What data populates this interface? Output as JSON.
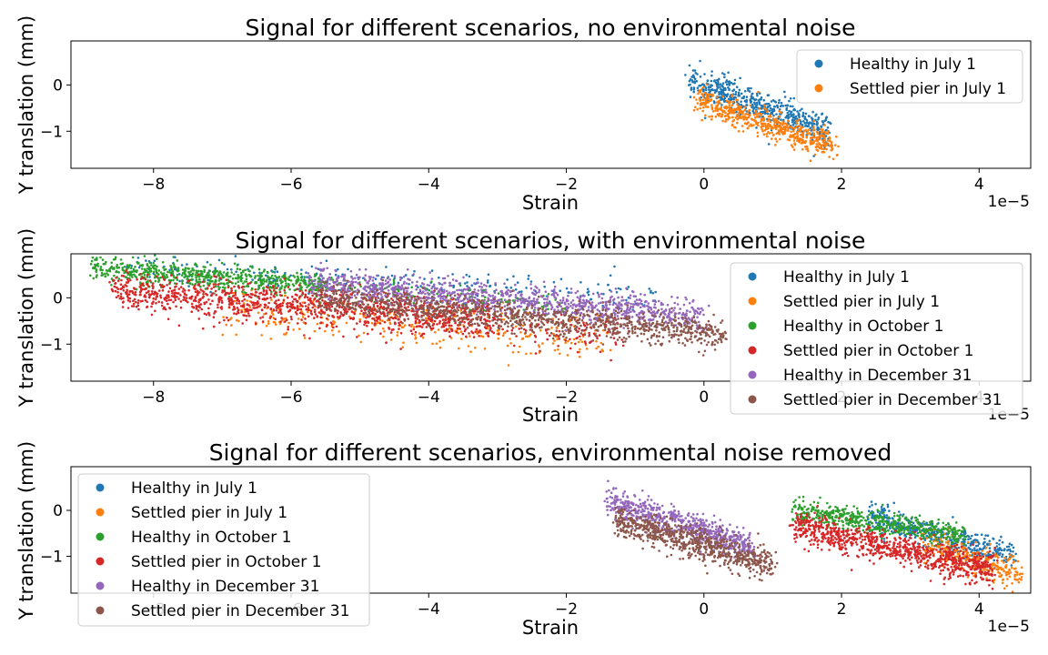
{
  "chart_data": [
    {
      "type": "scatter",
      "title": "Signal for different scenarios, no environmental noise",
      "xlabel": "Strain",
      "ylabel": "Y translation (mm)",
      "x_offset_label": "1e−5",
      "xlim": [
        -9.2,
        4.75
      ],
      "ylim": [
        -1.8,
        0.95
      ],
      "xticks": [
        -8,
        -6,
        -4,
        -2,
        0,
        2,
        4
      ],
      "yticks": [
        0,
        -1
      ],
      "legend": "upper-right",
      "series": [
        {
          "name": "Healthy in July 1",
          "color": "#1f77b4",
          "clusters": [
            {
              "x": [
                -0.2,
                1.8
              ],
              "y_center": [
                0.1,
                -1.0
              ],
              "spread": 0.17,
              "n": 550
            }
          ]
        },
        {
          "name": "Settled pier in July 1",
          "color": "#ff7f0e",
          "clusters": [
            {
              "x": [
                -0.1,
                1.9
              ],
              "y_center": [
                -0.3,
                -1.35
              ],
              "spread": 0.15,
              "n": 550
            }
          ]
        }
      ]
    },
    {
      "type": "scatter",
      "title": "Signal for different scenarios, with environmental noise",
      "xlabel": "Strain",
      "ylabel": "Y translation (mm)",
      "x_offset_label": "1e−5",
      "xlim": [
        -9.2,
        4.75
      ],
      "ylim": [
        -1.8,
        0.95
      ],
      "xticks": [
        -8,
        -6,
        -4,
        -2,
        0,
        2,
        4
      ],
      "yticks": [
        0,
        -1
      ],
      "legend": "right",
      "series": [
        {
          "name": "Healthy in July 1",
          "color": "#1f77b4",
          "clusters": [
            {
              "x": [
                -8.5,
                -0.6
              ],
              "y_center": [
                0.65,
                0.05
              ],
              "spread": 0.15,
              "n": 250
            }
          ]
        },
        {
          "name": "Settled pier in July 1",
          "color": "#ff7f0e",
          "clusters": [
            {
              "x": [
                -7.0,
                -1.4
              ],
              "y_center": [
                -0.3,
                -0.85
              ],
              "spread": 0.25,
              "n": 350
            }
          ]
        },
        {
          "name": "Healthy in October 1",
          "color": "#2ca02c",
          "clusters": [
            {
              "x": [
                -8.9,
                -5.5
              ],
              "y_center": [
                0.65,
                0.25
              ],
              "spread": 0.13,
              "n": 650
            },
            {
              "x": [
                -5.5,
                -2.0
              ],
              "y_center": [
                0.3,
                -0.2
              ],
              "spread": 0.13,
              "n": 120
            }
          ]
        },
        {
          "name": "Settled pier in October 1",
          "color": "#d62728",
          "clusters": [
            {
              "x": [
                -8.6,
                -3.0
              ],
              "y_center": [
                0.15,
                -0.45
              ],
              "spread": 0.2,
              "n": 1100
            },
            {
              "x": [
                -5.0,
                -1.2
              ],
              "y_center": [
                -0.4,
                -0.8
              ],
              "spread": 0.2,
              "n": 200
            }
          ]
        },
        {
          "name": "Healthy in December 31",
          "color": "#9467bd",
          "clusters": [
            {
              "x": [
                -5.7,
                0.0
              ],
              "y_center": [
                0.35,
                -0.4
              ],
              "spread": 0.16,
              "n": 1100
            }
          ]
        },
        {
          "name": "Settled pier in December 31",
          "color": "#8c564b",
          "clusters": [
            {
              "x": [
                -5.6,
                0.3
              ],
              "y_center": [
                0.0,
                -0.8
              ],
              "spread": 0.16,
              "n": 1100
            }
          ]
        }
      ]
    },
    {
      "type": "scatter",
      "title": "Signal for different scenarios, environmental noise removed",
      "xlabel": "Strain",
      "ylabel": "Y translation (mm)",
      "x_offset_label": "1e−5",
      "xlim": [
        -9.2,
        4.75
      ],
      "ylim": [
        -1.8,
        0.95
      ],
      "xticks": [
        -8,
        -6,
        -4,
        -2,
        0,
        2,
        4
      ],
      "yticks": [
        0,
        -1
      ],
      "legend": "upper-left",
      "series": [
        {
          "name": "Healthy in July 1",
          "color": "#1f77b4",
          "clusters": [
            {
              "x": [
                2.4,
                4.5
              ],
              "y_center": [
                -0.1,
                -1.0
              ],
              "spread": 0.16,
              "n": 450
            }
          ]
        },
        {
          "name": "Settled pier in July 1",
          "color": "#ff7f0e",
          "clusters": [
            {
              "x": [
                3.2,
                4.6
              ],
              "y_center": [
                -0.7,
                -1.4
              ],
              "spread": 0.17,
              "n": 300
            }
          ]
        },
        {
          "name": "Healthy in October 1",
          "color": "#2ca02c",
          "clusters": [
            {
              "x": [
                1.3,
                3.8
              ],
              "y_center": [
                0.0,
                -0.55
              ],
              "spread": 0.13,
              "n": 550
            }
          ]
        },
        {
          "name": "Settled pier in October 1",
          "color": "#d62728",
          "clusters": [
            {
              "x": [
                1.3,
                4.2
              ],
              "y_center": [
                -0.35,
                -1.3
              ],
              "spread": 0.17,
              "n": 900
            }
          ]
        },
        {
          "name": "Healthy in December 31",
          "color": "#9467bd",
          "clusters": [
            {
              "x": [
                -1.4,
                0.7
              ],
              "y_center": [
                0.2,
                -0.8
              ],
              "spread": 0.15,
              "n": 650
            }
          ]
        },
        {
          "name": "Settled pier in December 31",
          "color": "#8c564b",
          "clusters": [
            {
              "x": [
                -1.3,
                1.0
              ],
              "y_center": [
                -0.2,
                -1.2
              ],
              "spread": 0.17,
              "n": 750
            }
          ]
        }
      ]
    }
  ]
}
